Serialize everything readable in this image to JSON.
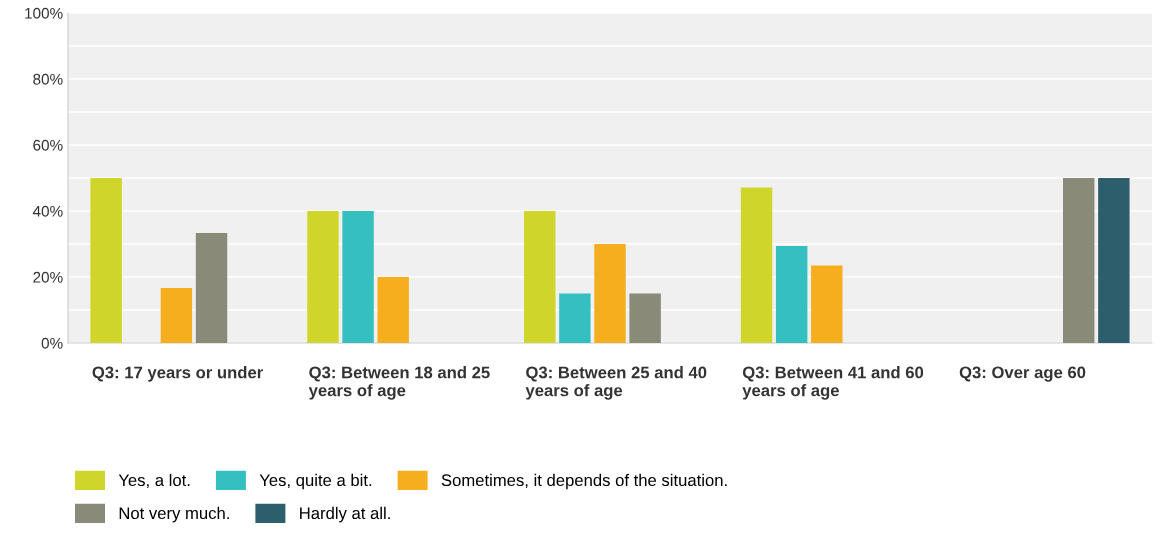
{
  "chart_data": {
    "type": "bar",
    "categories": [
      "Q3: 17 years or under",
      "Q3: Between 18 and 25 years of age",
      "Q3: Between 25 and 40 years of age",
      "Q3: Between 41 and 60 years of age",
      "Q3: Over age 60"
    ],
    "series": [
      {
        "name": "Yes, a lot.",
        "color": "#cfd52a",
        "values": [
          50,
          40,
          40,
          47.1,
          0
        ]
      },
      {
        "name": "Yes, quite a bit.",
        "color": "#35bfc1",
        "values": [
          0,
          40,
          15,
          29.4,
          0
        ]
      },
      {
        "name": "Sometimes, it depends of the situation.",
        "color": "#f6ae1f",
        "values": [
          16.7,
          20,
          30,
          23.5,
          0
        ]
      },
      {
        "name": "Not very much.",
        "color": "#8a8a78",
        "values": [
          33.3,
          0,
          15,
          0,
          50
        ]
      },
      {
        "name": "Hardly at all.",
        "color": "#2d5e6c",
        "values": [
          0,
          0,
          0,
          0,
          50
        ]
      }
    ],
    "ylim": [
      0,
      100
    ],
    "yticks": [
      {
        "value": 0,
        "label": "0%"
      },
      {
        "value": 10,
        "label": null
      },
      {
        "value": 20,
        "label": "20%"
      },
      {
        "value": 30,
        "label": null
      },
      {
        "value": 40,
        "label": "40%"
      },
      {
        "value": 50,
        "label": null
      },
      {
        "value": 60,
        "label": "60%"
      },
      {
        "value": 70,
        "label": null
      },
      {
        "value": 80,
        "label": "80%"
      },
      {
        "value": 90,
        "label": null
      },
      {
        "value": 100,
        "label": "100%"
      }
    ],
    "grid": "y",
    "legend": "bottom"
  }
}
